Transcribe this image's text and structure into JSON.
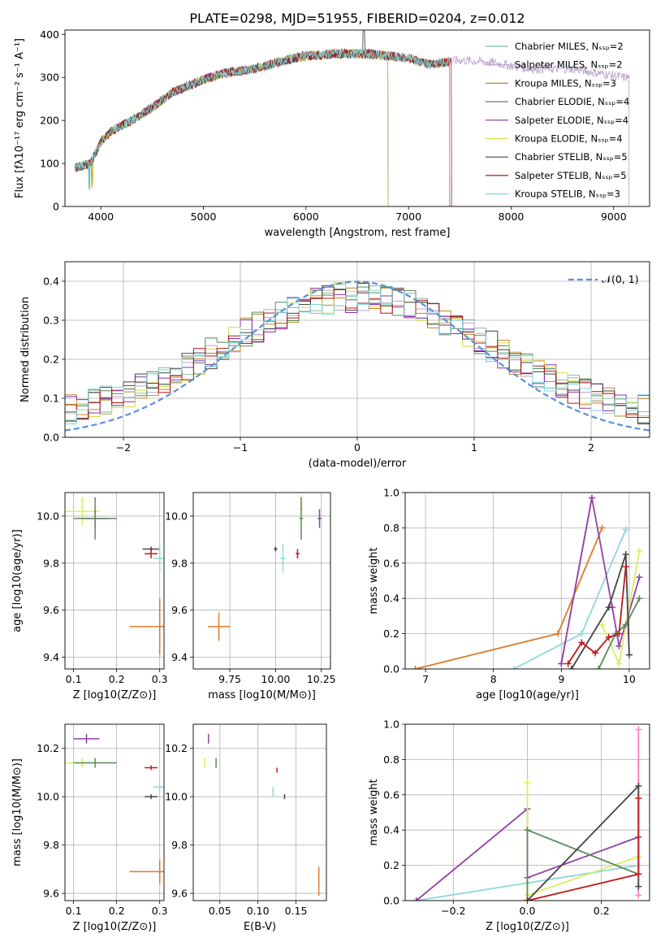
{
  "figure_title": "PLATE=0298, MJD=51955, FIBERID=0204, z=0.012",
  "colors": {
    "models": [
      "#7fbf9f",
      "#b7a3c7",
      "#c2862f",
      "#5a8a5a",
      "#8e2fa8",
      "#d4dc4a",
      "#444444",
      "#b01818",
      "#7fd6dc"
    ],
    "normal": "#5b8fd8",
    "pop": [
      "#e07a26",
      "#8fd8dc",
      "#ff7ec3",
      "#9040a8",
      "#d8f060",
      "#5a8a5a",
      "#444444",
      "#c01a1a"
    ]
  },
  "chart_data": [
    {
      "type": "line",
      "title": "PLATE=0298, MJD=51955, FIBERID=0204, z=0.012",
      "xlabel": "wavelength [Angstrom, rest frame]",
      "ylabel": "Flux [fλ10⁻¹⁷ erg cm⁻² s⁻¹ A⁻¹]",
      "xlim": [
        3650,
        9350
      ],
      "ylim": [
        0,
        410
      ],
      "xticks": [
        4000,
        5000,
        6000,
        7000,
        8000,
        9000
      ],
      "yticks": [
        0,
        100,
        200,
        300,
        400
      ],
      "grid": false,
      "legend": "upper right",
      "continuum": {
        "x": [
          3750,
          3900,
          4000,
          4100,
          4300,
          4500,
          4700,
          5000,
          5200,
          5500,
          5800,
          6000,
          6300,
          6600,
          7000,
          7200,
          7500,
          7800,
          8200,
          8600,
          9100
        ],
        "y": [
          90,
          100,
          150,
          175,
          200,
          230,
          265,
          295,
          310,
          320,
          340,
          350,
          355,
          355,
          345,
          330,
          340,
          335,
          320,
          320,
          300
        ]
      },
      "series": [
        {
          "name": "Chabrier MILES, N_SSP=2",
          "end": 7400
        },
        {
          "name": "Salpeter MILES, N_SSP=2",
          "end": 9150
        },
        {
          "name": "Kroupa MILES, N_SSP=3",
          "end": 7400
        },
        {
          "name": "Chabrier ELODIE, N_SSP=4",
          "end": 6800
        },
        {
          "name": "Salpeter ELODIE, N_SSP=4",
          "end": 6800
        },
        {
          "name": "Kroupa ELODIE, N_SSP=4",
          "end": 6800
        },
        {
          "name": "Chabrier STELIB, N_SSP=5",
          "end": 7400
        },
        {
          "name": "Salpeter STELIB, N_SSP=5",
          "end": 7420
        },
        {
          "name": "Kroupa STELIB, N_SSP=3",
          "end": 7400
        }
      ]
    },
    {
      "type": "line",
      "xlabel": "(data-model)/error",
      "ylabel": "Normed distribution",
      "xlim": [
        -2.5,
        2.5
      ],
      "ylim": [
        0,
        0.45
      ],
      "xticks": [
        -2,
        -1,
        0,
        1,
        2
      ],
      "yticks": [
        0.0,
        0.1,
        0.2,
        0.3,
        0.4
      ],
      "grid": true,
      "legend": "upper right",
      "curve": "N(0,1)",
      "curve_label": "𝒩(0, 1)",
      "histogram_bins": 50
    },
    {
      "type": "scatter",
      "xlabel": "Z [log10(Z/Z⊙)]",
      "ylabel": "age [log10(age/yr)]",
      "xlim": [
        0.08,
        0.31
      ],
      "ylim": [
        9.35,
        10.1
      ],
      "xticks": [
        0.1,
        0.2,
        0.3
      ],
      "yticks": [
        9.4,
        9.6,
        9.8,
        10.0
      ],
      "points": [
        {
          "x": 0.12,
          "y": 10.02,
          "xerr": 0.04,
          "yerr": 0.06,
          "c": 4
        },
        {
          "x": 0.15,
          "y": 9.99,
          "xerr": 0.03,
          "yerr": 0.04,
          "c": 3
        },
        {
          "x": 0.15,
          "y": 9.99,
          "xerr": 0.05,
          "yerr": 0.09,
          "c": 5
        },
        {
          "x": 0.28,
          "y": 9.86,
          "xerr": 0.02,
          "yerr": 0.01,
          "c": 6
        },
        {
          "x": 0.28,
          "y": 9.84,
          "xerr": 0.015,
          "yerr": 0.02,
          "c": 7
        },
        {
          "x": 0.3,
          "y": 9.82,
          "xerr": 0.015,
          "yerr": 0.06,
          "c": 1
        },
        {
          "x": 0.3,
          "y": 9.53,
          "xerr": 0.07,
          "yerr": 0.12,
          "c": 0
        }
      ]
    },
    {
      "type": "scatter",
      "xlabel": "mass [log10(M/M⊙)]",
      "ylabel": "",
      "xlim": [
        9.55,
        10.3
      ],
      "ylim": [
        9.35,
        10.1
      ],
      "xticks": [
        9.75,
        10.0,
        10.25
      ],
      "yticks": [
        9.4,
        9.6,
        9.8,
        10.0
      ],
      "points": [
        {
          "x": 10.14,
          "y": 10.03,
          "xerr": 0.01,
          "yerr": 0.06,
          "c": 4
        },
        {
          "x": 10.24,
          "y": 9.99,
          "xerr": 0.01,
          "yerr": 0.04,
          "c": 3
        },
        {
          "x": 10.14,
          "y": 9.99,
          "xerr": 0.01,
          "yerr": 0.09,
          "c": 5
        },
        {
          "x": 10.0,
          "y": 9.86,
          "xerr": 0.01,
          "yerr": 0.01,
          "c": 6
        },
        {
          "x": 10.12,
          "y": 9.84,
          "xerr": 0.01,
          "yerr": 0.02,
          "c": 7
        },
        {
          "x": 10.04,
          "y": 9.82,
          "xerr": 0.015,
          "yerr": 0.06,
          "c": 1
        },
        {
          "x": 9.69,
          "y": 9.53,
          "xerr": 0.06,
          "yerr": 0.06,
          "c": 0
        }
      ]
    },
    {
      "type": "line",
      "xlabel": "age [log10(age/yr)]",
      "ylabel": "mass weight",
      "xlim": [
        6.7,
        10.3
      ],
      "ylim": [
        0,
        1.0
      ],
      "xticks": [
        7,
        8,
        9,
        10
      ],
      "yticks": [
        0.0,
        0.2,
        0.4,
        0.6,
        0.8,
        1.0
      ],
      "grid": true,
      "series": [
        {
          "c": 0,
          "x": [
            6.85,
            8.95,
            9.6
          ],
          "y": [
            0.0,
            0.2,
            0.8
          ]
        },
        {
          "c": 1,
          "x": [
            8.3,
            9.3,
            9.95
          ],
          "y": [
            0.0,
            0.2,
            0.79
          ]
        },
        {
          "c": 2,
          "x": [
            9.0,
            9.45
          ],
          "y": [
            0.03,
            0.97
          ]
        },
        {
          "c": 3,
          "x": [
            9.0,
            9.45,
            9.75,
            9.85,
            10.15
          ],
          "y": [
            0.03,
            0.97,
            0.35,
            0.13,
            0.52
          ]
        },
        {
          "c": 4,
          "x": [
            9.6,
            9.85,
            10.15
          ],
          "y": [
            0.25,
            0.03,
            0.67
          ]
        },
        {
          "c": 5,
          "x": [
            9.55,
            9.8,
            9.95,
            10.15
          ],
          "y": [
            0.0,
            0.2,
            0.25,
            0.4
          ]
        },
        {
          "c": 6,
          "x": [
            9.15,
            9.7,
            9.95,
            10.0
          ],
          "y": [
            0.0,
            0.35,
            0.65,
            0.08
          ]
        },
        {
          "c": 7,
          "x": [
            9.1,
            9.3,
            9.5,
            9.7,
            9.85,
            9.95
          ],
          "y": [
            0.03,
            0.15,
            0.09,
            0.18,
            0.2,
            0.58
          ]
        }
      ]
    },
    {
      "type": "scatter",
      "xlabel": "Z [log10(Z/Z⊙)]",
      "ylabel": "mass [log10(M/M⊙)]",
      "xlim": [
        0.08,
        0.31
      ],
      "ylim": [
        9.57,
        10.3
      ],
      "xticks": [
        0.1,
        0.2,
        0.3
      ],
      "yticks": [
        9.6,
        9.8,
        10.0,
        10.2
      ],
      "points": [
        {
          "x": 0.13,
          "y": 10.24,
          "xerr": 0.03,
          "yerr": 0.02,
          "c": 3
        },
        {
          "x": 0.12,
          "y": 10.14,
          "xerr": 0.04,
          "yerr": 0.02,
          "c": 4
        },
        {
          "x": 0.15,
          "y": 10.14,
          "xerr": 0.05,
          "yerr": 0.02,
          "c": 5
        },
        {
          "x": 0.28,
          "y": 10.12,
          "xerr": 0.015,
          "yerr": 0.01,
          "c": 7
        },
        {
          "x": 0.3,
          "y": 10.04,
          "xerr": 0.015,
          "yerr": 0.01,
          "c": 1
        },
        {
          "x": 0.28,
          "y": 10.0,
          "xerr": 0.015,
          "yerr": 0.01,
          "c": 6
        },
        {
          "x": 0.3,
          "y": 9.69,
          "xerr": 0.07,
          "yerr": 0.05,
          "c": 0
        }
      ]
    },
    {
      "type": "scatter",
      "xlabel": "E(B-V)",
      "ylabel": "",
      "xlim": [
        0.015,
        0.19
      ],
      "ylim": [
        9.57,
        10.3
      ],
      "xticks": [
        0.05,
        0.1,
        0.15
      ],
      "yticks": [
        9.6,
        9.8,
        10.0,
        10.2
      ],
      "points": [
        {
          "x": 0.035,
          "y": 10.24,
          "xerr": 0.0,
          "yerr": 0.02,
          "c": 3
        },
        {
          "x": 0.03,
          "y": 10.14,
          "xerr": 0.0,
          "yerr": 0.02,
          "c": 4
        },
        {
          "x": 0.045,
          "y": 10.14,
          "xerr": 0.0,
          "yerr": 0.02,
          "c": 5
        },
        {
          "x": 0.125,
          "y": 10.11,
          "xerr": 0.0,
          "yerr": 0.01,
          "c": 7
        },
        {
          "x": 0.12,
          "y": 10.02,
          "xerr": 0.0,
          "yerr": 0.02,
          "c": 1
        },
        {
          "x": 0.135,
          "y": 10.0,
          "xerr": 0.0,
          "yerr": 0.01,
          "c": 6
        },
        {
          "x": 0.18,
          "y": 9.65,
          "xerr": 0.0,
          "yerr": 0.06,
          "c": 0
        }
      ]
    },
    {
      "type": "line",
      "xlabel": "Z [log10(Z/Z⊙)]",
      "ylabel": "mass weight",
      "xlim": [
        -0.33,
        0.33
      ],
      "ylim": [
        0,
        1.0
      ],
      "xticks": [
        -0.2,
        0.0,
        0.2
      ],
      "yticks": [
        0.0,
        0.2,
        0.4,
        0.6,
        0.8,
        1.0
      ],
      "grid": true,
      "series": [
        {
          "c": 1,
          "x": [
            -0.3,
            0.0,
            0.3,
            0.3
          ],
          "y": [
            0.0,
            0.1,
            0.2,
            0.8
          ]
        },
        {
          "c": 3,
          "x": [
            -0.3,
            0.0,
            0.0,
            0.3
          ],
          "y": [
            0.0,
            0.52,
            0.13,
            0.36
          ]
        },
        {
          "c": 4,
          "x": [
            0.0,
            0.0,
            0.3
          ],
          "y": [
            0.67,
            0.03,
            0.25
          ]
        },
        {
          "c": 5,
          "x": [
            0.0,
            0.0,
            0.3
          ],
          "y": [
            0.0,
            0.4,
            0.15
          ]
        },
        {
          "c": 2,
          "x": [
            0.3,
            0.3
          ],
          "y": [
            0.03,
            0.97
          ]
        },
        {
          "c": 6,
          "x": [
            0.0,
            0.3,
            0.3
          ],
          "y": [
            0.0,
            0.65,
            0.08
          ]
        },
        {
          "c": 7,
          "x": [
            0.0,
            0.3,
            0.3
          ],
          "y": [
            0.0,
            0.15,
            0.58
          ]
        }
      ]
    }
  ]
}
